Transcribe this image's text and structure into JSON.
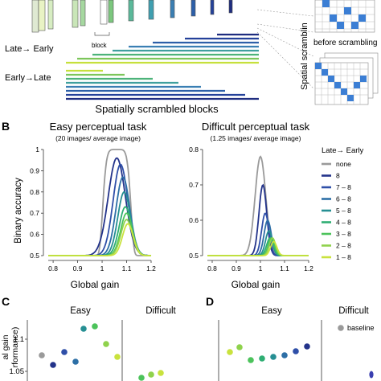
{
  "top": {
    "block_label": "block",
    "late_early_label": "Late→ Early",
    "early_late_label": "Early→Late",
    "scrambled_caption": "Spatially scrambled blocks",
    "spatial_label": "Spatial scramblin",
    "before_label": "before scrambling"
  },
  "panel_b": {
    "letter": "B",
    "ylabel": "Binary accuracy",
    "legend_title": "Late→ Early",
    "legend": [
      {
        "name": "none",
        "color": "#9a9a9a"
      },
      {
        "name": "8",
        "color": "#23338a"
      },
      {
        "name": "7 – 8",
        "color": "#2f4fa8"
      },
      {
        "name": "6 – 8",
        "color": "#2d6fa6"
      },
      {
        "name": "5 – 8",
        "color": "#268f93"
      },
      {
        "name": "4 – 8",
        "color": "#2fae73"
      },
      {
        "name": "3 – 8",
        "color": "#4cc35b"
      },
      {
        "name": "2 – 8",
        "color": "#8fd24c"
      },
      {
        "name": "1 – 8",
        "color": "#c9e23d"
      }
    ]
  },
  "chart_data": [
    {
      "type": "line",
      "title": "Easy perceptual task",
      "subtitle": "(20 images/ average image)",
      "xlabel": "Global gain",
      "ylabel": "Binary accuracy",
      "xlim": [
        0.78,
        1.2
      ],
      "ylim": [
        0.5,
        1.0
      ],
      "xticks": [
        "0.8",
        "0.9",
        "1",
        "1.1",
        "1.2"
      ],
      "yticks": [
        "0.5",
        "0.6",
        "0.7",
        "0.8",
        "0.9",
        "1"
      ],
      "series": [
        {
          "name": "none",
          "peak_x": 1.06,
          "peak_y": 1.0,
          "width": 0.06
        },
        {
          "name": "8",
          "peak_x": 1.06,
          "peak_y": 0.96,
          "width": 0.035
        },
        {
          "name": "7 – 8",
          "peak_x": 1.075,
          "peak_y": 0.93,
          "width": 0.03
        },
        {
          "name": "6 – 8",
          "peak_x": 1.085,
          "peak_y": 0.87,
          "width": 0.028
        },
        {
          "name": "5 – 8",
          "peak_x": 1.09,
          "peak_y": 0.8,
          "width": 0.026
        },
        {
          "name": "4 – 8",
          "peak_x": 1.095,
          "peak_y": 0.73,
          "width": 0.025
        },
        {
          "name": "3 – 8",
          "peak_x": 1.1,
          "peak_y": 0.7,
          "width": 0.024
        },
        {
          "name": "2 – 8",
          "peak_x": 1.1,
          "peak_y": 0.67,
          "width": 0.023
        },
        {
          "name": "1 – 8",
          "peak_x": 1.105,
          "peak_y": 0.65,
          "width": 0.022
        }
      ]
    },
    {
      "type": "line",
      "title": "Difficult perceptual task",
      "subtitle": "(1.25 images/ average image)",
      "xlabel": "Global gain",
      "xlim": [
        0.78,
        1.2
      ],
      "ylim": [
        0.5,
        0.8
      ],
      "xticks": [
        "0.8",
        "0.9",
        "1",
        "1.1",
        "1.2"
      ],
      "yticks": [
        "0.5",
        "0.6",
        "0.7",
        "0.8"
      ],
      "series": [
        {
          "name": "none",
          "peak_x": 1.0,
          "peak_y": 0.78,
          "width": 0.022
        },
        {
          "name": "8",
          "peak_x": 1.01,
          "peak_y": 0.7,
          "width": 0.016
        },
        {
          "name": "7 – 8",
          "peak_x": 1.02,
          "peak_y": 0.62,
          "width": 0.015
        },
        {
          "name": "6 – 8",
          "peak_x": 1.03,
          "peak_y": 0.6,
          "width": 0.015
        },
        {
          "name": "5 – 8",
          "peak_x": 1.035,
          "peak_y": 0.57,
          "width": 0.014
        },
        {
          "name": "4 – 8",
          "peak_x": 1.04,
          "peak_y": 0.55,
          "width": 0.014
        },
        {
          "name": "3 – 8",
          "peak_x": 1.045,
          "peak_y": 0.55,
          "width": 0.013
        },
        {
          "name": "2 – 8",
          "peak_x": 1.05,
          "peak_y": 0.55,
          "width": 0.013
        },
        {
          "name": "1 – 8",
          "peak_x": 1.055,
          "peak_y": 0.54,
          "width": 0.013
        }
      ]
    }
  ],
  "panel_c": {
    "letter": "C",
    "easy": "Easy",
    "difficult": "Difficult",
    "ylabel1": "al gain",
    "ylabel2": "rformance)",
    "yticks": [
      "1.1",
      "1.05"
    ]
  },
  "panel_d": {
    "letter": "D",
    "easy": "Easy",
    "difficult": "Difficult",
    "baseline": "baseline"
  }
}
